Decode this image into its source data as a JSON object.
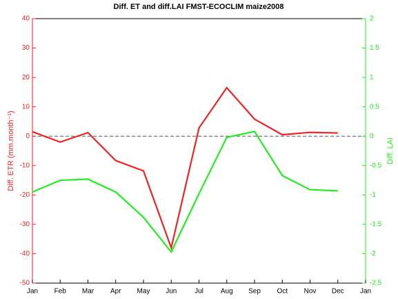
{
  "chart_data": {
    "type": "line",
    "title": "Diff. ET and diff.LAI FMST-ECOCLIM maize2008",
    "y_label": "Diff. ETR (mm.month⁻¹)",
    "y2_label": "Diff. LAI",
    "categories": [
      "Jan",
      "Feb",
      "Mar",
      "Apr",
      "May",
      "Jun",
      "Jul",
      "Aug",
      "Sep",
      "Oct",
      "Nov",
      "Dec",
      "Jan"
    ],
    "series": [
      {
        "name": "Diff. ETR",
        "color": "#ee2222",
        "axis": "y",
        "values": [
          1.5,
          -2,
          1.2,
          -8.3,
          -11.8,
          -38,
          2.8,
          16.5,
          5.8,
          0.5,
          1.3,
          1.1,
          null
        ]
      },
      {
        "name": "Diff. LAI",
        "color": "#22ee22",
        "axis": "y2",
        "values": [
          -0.95,
          -0.75,
          -0.73,
          -0.95,
          -1.38,
          -1.97,
          -0.98,
          -0.02,
          0.08,
          -0.67,
          -0.91,
          -0.93,
          null
        ]
      }
    ],
    "ylim": [
      -50,
      40
    ],
    "yticks": [
      -50,
      -40,
      -30,
      -20,
      -10,
      0,
      10,
      20,
      30,
      40
    ],
    "y2lim": [
      -2.5,
      2
    ],
    "y2ticks": [
      -2.5,
      -2,
      -1.5,
      -1,
      -0.5,
      0,
      0.5,
      1,
      1.5,
      2
    ],
    "y_color": "#ee2222",
    "y2_color": "#22ee22",
    "zero_line": true
  }
}
